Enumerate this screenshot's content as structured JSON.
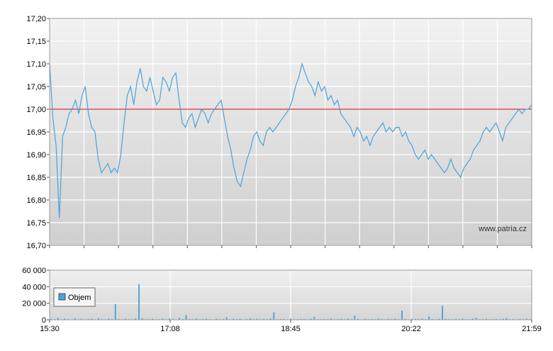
{
  "chart_data": [
    {
      "type": "line",
      "title": "",
      "xlabel": "",
      "ylabel": "",
      "ylim": [
        16.7,
        17.2
      ],
      "y_ticks": [
        "17,20",
        "17,15",
        "17,10",
        "17,05",
        "17,00",
        "16,95",
        "16,90",
        "16,85",
        "16,80",
        "16,75",
        "16,70"
      ],
      "reference_line": {
        "value": 17.0,
        "color": "#cc0000"
      },
      "grid": true,
      "watermark": "www.patria.cz",
      "line_color": "#4aa3d8",
      "series": [
        {
          "values": [
            17.1,
            16.98,
            16.92,
            16.76,
            16.94,
            16.96,
            16.99,
            17.0,
            17.02,
            16.99,
            17.03,
            17.05,
            16.99,
            16.96,
            16.95,
            16.89,
            16.86,
            16.87,
            16.88,
            16.86,
            16.87,
            16.86,
            16.9,
            16.97,
            17.03,
            17.05,
            17.01,
            17.06,
            17.09,
            17.05,
            17.04,
            17.07,
            17.04,
            17.01,
            17.02,
            17.07,
            17.06,
            17.04,
            17.07,
            17.08,
            17.02,
            16.97,
            16.96,
            16.98,
            16.99,
            16.96,
            16.98,
            17.0,
            16.99,
            16.97,
            16.99,
            17.0,
            17.01,
            17.02,
            16.98,
            16.94,
            16.91,
            16.87,
            16.84,
            16.83,
            16.86,
            16.89,
            16.91,
            16.94,
            16.95,
            16.93,
            16.92,
            16.95,
            16.96,
            16.95,
            16.96,
            16.97,
            16.98,
            16.99,
            17.0,
            17.02,
            17.05,
            17.07,
            17.1,
            17.08,
            17.06,
            17.05,
            17.03,
            17.06,
            17.04,
            17.05,
            17.02,
            17.03,
            17.01,
            17.02,
            16.99,
            16.98,
            16.97,
            16.96,
            16.94,
            16.96,
            16.95,
            16.93,
            16.94,
            16.92,
            16.94,
            16.95,
            16.96,
            16.97,
            16.95,
            16.96,
            16.95,
            16.96,
            16.96,
            16.94,
            16.95,
            16.93,
            16.92,
            16.9,
            16.89,
            16.9,
            16.91,
            16.89,
            16.9,
            16.89,
            16.88,
            16.87,
            16.86,
            16.87,
            16.89,
            16.87,
            16.86,
            16.85,
            16.87,
            16.88,
            16.89,
            16.91,
            16.92,
            16.93,
            16.95,
            16.96,
            16.95,
            16.96,
            16.97,
            16.95,
            16.93,
            16.96,
            16.97,
            16.98,
            16.99,
            17.0,
            16.99,
            17.0,
            17.0,
            17.01
          ]
        }
      ]
    },
    {
      "type": "bar",
      "title": "",
      "xlabel": "",
      "ylabel": "",
      "ylim": [
        0,
        60000
      ],
      "y_ticks": [
        "60 000",
        "40 000",
        "20 000",
        "0"
      ],
      "x_ticks": [
        "15:30",
        "17:08",
        "18:45",
        "20:22",
        "21:59"
      ],
      "grid": true,
      "legend": {
        "placement": "top-left",
        "entries": [
          "Objem"
        ]
      },
      "bar_color": "#4aa3d8",
      "series": [
        {
          "name": "Objem",
          "values": [
            1200,
            800,
            2500,
            600,
            1500,
            900,
            400,
            1800,
            700,
            1100,
            500,
            900,
            1300,
            600,
            2000,
            800,
            700,
            1400,
            900,
            19000,
            1000,
            600,
            1200,
            800,
            500,
            1500,
            43000,
            1900,
            700,
            900,
            1200,
            500,
            800,
            1300,
            600,
            1700,
            900,
            400,
            2200,
            800,
            6000,
            1000,
            700,
            1500,
            600,
            900,
            1200,
            800,
            500,
            1400,
            700,
            900,
            3000,
            600,
            1100,
            800,
            1300,
            500,
            900,
            1600,
            700,
            1200,
            600,
            1000,
            800,
            1500,
            9000,
            700,
            900,
            1100,
            600,
            1400,
            800,
            700,
            1000,
            900,
            500,
            1200,
            3500,
            600,
            800,
            1000,
            700,
            1300,
            600,
            900,
            1100,
            800,
            1500,
            700,
            5000,
            900,
            600,
            1200,
            800,
            1000,
            700,
            1400,
            900,
            600,
            1100,
            800,
            1300,
            700,
            11000,
            900,
            600,
            1200,
            1000,
            800,
            1500,
            700,
            4000,
            900,
            600,
            1100,
            17000,
            1300,
            800,
            700,
            1000,
            900,
            1200,
            600,
            800,
            1500,
            2500,
            700,
            900,
            1100,
            600,
            800,
            1000,
            700,
            1300,
            2000,
            800,
            900,
            600,
            1000,
            700,
            1200,
            800
          ]
        }
      ]
    }
  ]
}
